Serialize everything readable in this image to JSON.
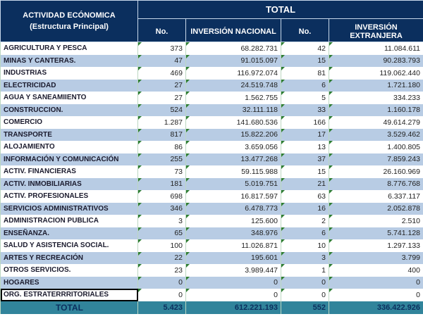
{
  "header": {
    "activity_title": "ACTIVIDAD ECÓNOMICA",
    "activity_subtitle": "(Estructura Principal)",
    "group_title": "TOTAL",
    "columns": [
      "No.",
      "INVERSIÓN NACIONAL",
      "No.",
      "INVERSIÓN EXTRANJERA"
    ]
  },
  "rows": [
    {
      "activity": "AGRICULTURA Y PESCA",
      "no_nac": "373",
      "inv_nac": "68.282.731",
      "no_ext": "42",
      "inv_ext": "11.084.611"
    },
    {
      "activity": "MINAS Y CANTERAS.",
      "no_nac": "47",
      "inv_nac": "91.015.097",
      "no_ext": "15",
      "inv_ext": "90.283.793"
    },
    {
      "activity": "INDUSTRIAS",
      "no_nac": "469",
      "inv_nac": "116.972.074",
      "no_ext": "81",
      "inv_ext": "119.062.440"
    },
    {
      "activity": "ELECTRICIDAD",
      "no_nac": "27",
      "inv_nac": "24.519.748",
      "no_ext": "6",
      "inv_ext": "1.721.180"
    },
    {
      "activity": "AGUA Y SANEAMIIENTO",
      "no_nac": "27",
      "inv_nac": "1.562.755",
      "no_ext": "5",
      "inv_ext": "334.233"
    },
    {
      "activity": "CONSTRUCCION.",
      "no_nac": "524",
      "inv_nac": "32.111.118",
      "no_ext": "33",
      "inv_ext": "1.160.178"
    },
    {
      "activity": "COMERCIO",
      "no_nac": "1.287",
      "inv_nac": "141.680.536",
      "no_ext": "166",
      "inv_ext": "49.614.279"
    },
    {
      "activity": "TRANSPORTE",
      "no_nac": "817",
      "inv_nac": "15.822.206",
      "no_ext": "17",
      "inv_ext": "3.529.462"
    },
    {
      "activity": "ALOJAMIENTO",
      "no_nac": "86",
      "inv_nac": "3.659.056",
      "no_ext": "13",
      "inv_ext": "1.400.805"
    },
    {
      "activity": "INFORMACIÓN Y COMUNICACIÓN",
      "no_nac": "255",
      "inv_nac": "13.477.268",
      "no_ext": "37",
      "inv_ext": "7.859.243"
    },
    {
      "activity": "ACTIV. FINANCIERAS",
      "no_nac": "73",
      "inv_nac": "59.115.988",
      "no_ext": "15",
      "inv_ext": "26.160.969"
    },
    {
      "activity": "ACTIV. INMOBILIARIAS",
      "no_nac": "181",
      "inv_nac": "5.019.751",
      "no_ext": "21",
      "inv_ext": "8.776.768"
    },
    {
      "activity": "ACTIV. PROFESIONALES",
      "no_nac": "698",
      "inv_nac": "16.817.597",
      "no_ext": "63",
      "inv_ext": "6.337.117"
    },
    {
      "activity": "SERVICIOS ADMINISTRATIVOS",
      "no_nac": "346",
      "inv_nac": "6.478.773",
      "no_ext": "16",
      "inv_ext": "2.052.878"
    },
    {
      "activity": "ADMINISTRACION PUBLICA",
      "no_nac": "3",
      "inv_nac": "125.600",
      "no_ext": "2",
      "inv_ext": "2.510"
    },
    {
      "activity": "ENSEÑANZA.",
      "no_nac": "65",
      "inv_nac": "348.976",
      "no_ext": "6",
      "inv_ext": "5.741.128"
    },
    {
      "activity": "SALUD Y ASISTENCIA SOCIAL.",
      "no_nac": "100",
      "inv_nac": "11.026.871",
      "no_ext": "10",
      "inv_ext": "1.297.133"
    },
    {
      "activity": "ARTES Y RECREACIÓN",
      "no_nac": "22",
      "inv_nac": "195.601",
      "no_ext": "3",
      "inv_ext": "3.799"
    },
    {
      "activity": "OTROS  SERVICIOS.",
      "no_nac": "23",
      "inv_nac": "3.989.447",
      "no_ext": "1",
      "inv_ext": "400"
    },
    {
      "activity": "HOGARES",
      "no_nac": "0",
      "inv_nac": "0",
      "no_ext": "0",
      "inv_ext": "0"
    },
    {
      "activity": "ORG. ESTRATERRRITORIALES",
      "no_nac": "0",
      "inv_nac": "0",
      "no_ext": "0",
      "inv_ext": "0"
    }
  ],
  "total": {
    "label": "TOTAL",
    "no_nac": "5.423",
    "inv_nac": "612.221.193",
    "no_ext": "552",
    "inv_ext": "336.422.926"
  },
  "colors": {
    "header_bg": "#0b2f5e",
    "band_bg": "#b8cce4",
    "total_bg": "#31849b"
  }
}
